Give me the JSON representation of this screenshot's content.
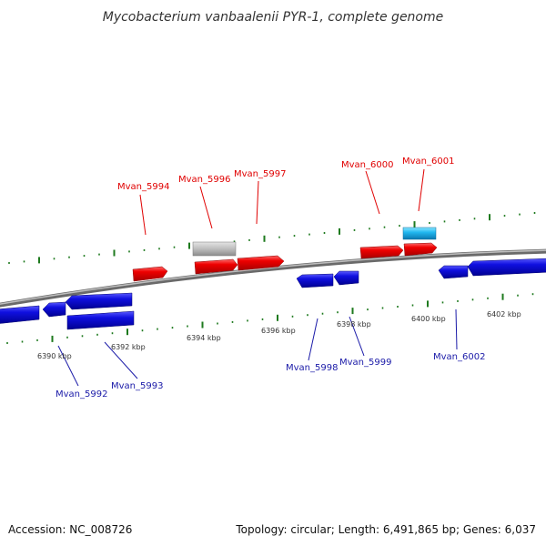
{
  "title": "Mycobacterium vanbaalenii PYR-1, complete genome",
  "footer": {
    "accession": "Accession: NC_008726",
    "summary": "Topology: circular; Length: 6,491,865 bp; Genes: 6,037"
  },
  "colors": {
    "forward_gene": "#ee0000",
    "reverse_gene": "#1010e0",
    "pseudo_gene": "#bdbdbd",
    "rna_gene": "#22b8f0",
    "tick": "#1e7a1e",
    "backbone": "#808080",
    "label_forward": "#e00000",
    "label_reverse": "#1a1aa8"
  },
  "scale": {
    "unit": "kbp",
    "labels": [
      "6390 kbp",
      "6392 kbp",
      "6394 kbp",
      "6396 kbp",
      "6398 kbp",
      "6400 kbp",
      "6402 kbp"
    ]
  },
  "forward_labels": [
    "Mvan_5994",
    "Mvan_5996",
    "Mvan_5997",
    "Mvan_6000",
    "Mvan_6001"
  ],
  "reverse_labels": [
    "Mvan_5992",
    "Mvan_5993",
    "Mvan_5998",
    "Mvan_5999",
    "Mvan_6002"
  ]
}
